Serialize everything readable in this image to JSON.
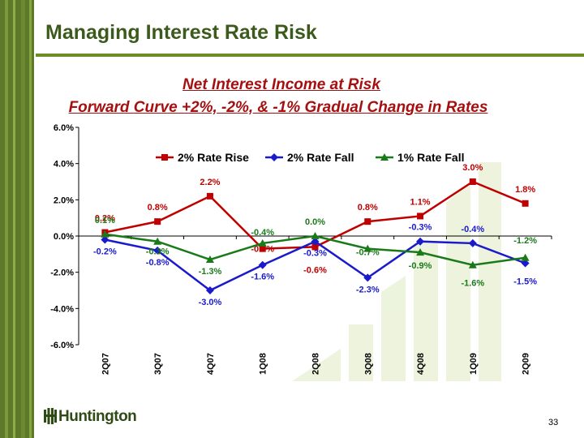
{
  "page": {
    "title": "Managing Interest Rate Risk",
    "subtitle1": "Net Interest Income at Risk",
    "subtitle2": "Forward Curve +2%, -2%, & -1% Gradual Change in Rates",
    "logo_text": "Huntington",
    "page_number": "33"
  },
  "colors": {
    "accent_green": "#3c5a1c",
    "subtitle_red": "#a50f0f",
    "rise": "#c00000",
    "fall2": "#1a1acc",
    "fall1": "#1a7a1a"
  },
  "chart_data": {
    "type": "line",
    "categories": [
      "2Q07",
      "3Q07",
      "4Q07",
      "1Q08",
      "2Q08",
      "3Q08",
      "4Q08",
      "1Q09",
      "2Q09"
    ],
    "ylim": [
      -6.0,
      6.0
    ],
    "yticks": [
      "6.0%",
      "4.0%",
      "2.0%",
      "0.0%",
      "-2.0%",
      "-4.0%",
      "-6.0%"
    ],
    "ytick_values": [
      6,
      4,
      2,
      0,
      -2,
      -4,
      -6
    ],
    "legend_position": "top",
    "grid": false,
    "series": [
      {
        "name": "2% Rate Rise",
        "color": "#c00000",
        "marker": "square",
        "values": [
          0.2,
          0.8,
          2.2,
          -0.7,
          -0.6,
          0.8,
          1.1,
          3.0,
          1.8
        ],
        "labels": [
          "0.2%",
          "0.8%",
          "2.2%",
          "-0.7%",
          "-0.6%",
          "0.8%",
          "1.1%",
          "3.0%",
          "1.8%"
        ]
      },
      {
        "name": "2% Rate Fall",
        "color": "#1a1acc",
        "marker": "diamond",
        "values": [
          -0.2,
          -0.8,
          -3.0,
          -1.6,
          -0.3,
          -2.3,
          -0.3,
          -0.4,
          -1.5
        ],
        "labels": [
          "-0.2%",
          "-0.8%",
          "-3.0%",
          "-1.6%",
          "-0.3%",
          "-2.3%",
          "-0.3%",
          "-0.4%",
          "-1.5%"
        ]
      },
      {
        "name": "1% Rate Fall",
        "color": "#1a7a1a",
        "marker": "triangle",
        "values": [
          0.1,
          -0.3,
          -1.3,
          -0.4,
          0.0,
          -0.7,
          -0.9,
          -1.6,
          -1.2
        ],
        "labels": [
          "0.1%",
          "-0.3%",
          "-1.3%",
          "-0.4%",
          "0.0%",
          "-0.7%",
          "-0.9%",
          "-1.6%",
          "-1.2%"
        ]
      }
    ]
  }
}
